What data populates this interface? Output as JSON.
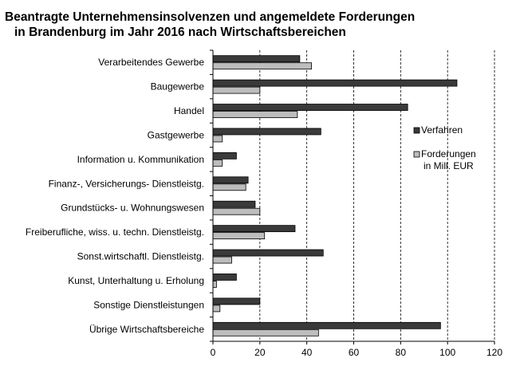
{
  "chart_data": {
    "type": "bar",
    "orientation": "horizontal",
    "title": [
      "Beantragte Unternehmensinsolvenzen und angemeldete Forderungen",
      "in Brandenburg im Jahr 2016 nach Wirtschaftsbereichen"
    ],
    "categories": [
      "Verarbeitendes Gewerbe",
      "Baugewerbe",
      "Handel",
      "Gastgewerbe",
      "Information u. Kommunikation",
      "Finanz-, Versicherungs- Dienstleistg.",
      "Grundstücks- u. Wohnungswesen",
      "Freiberufliche, wiss. u. techn. Dienstleistg.",
      "Sonst.wirtschaftl. Dienstleistg.",
      "Kunst, Unterhaltung u. Erholung",
      "Sonstige Dienstleistungen",
      "Übrige Wirtschaftsbereiche"
    ],
    "series": [
      {
        "name": "Verfahren",
        "color": "#3a3a3a",
        "values": [
          37,
          104,
          83,
          46,
          10,
          15,
          18,
          35,
          47,
          10,
          20,
          97
        ]
      },
      {
        "name": "Forderungen\nin Mill. EUR",
        "color": "#bdbdbd",
        "values": [
          42,
          20,
          36,
          4,
          4,
          14,
          20,
          22,
          8,
          1.5,
          3,
          45
        ]
      }
    ],
    "xlim": [
      0,
      120
    ],
    "xticks": [
      0,
      20,
      40,
      60,
      80,
      100,
      120
    ],
    "grid": "vertical dashed",
    "legend": "right"
  }
}
